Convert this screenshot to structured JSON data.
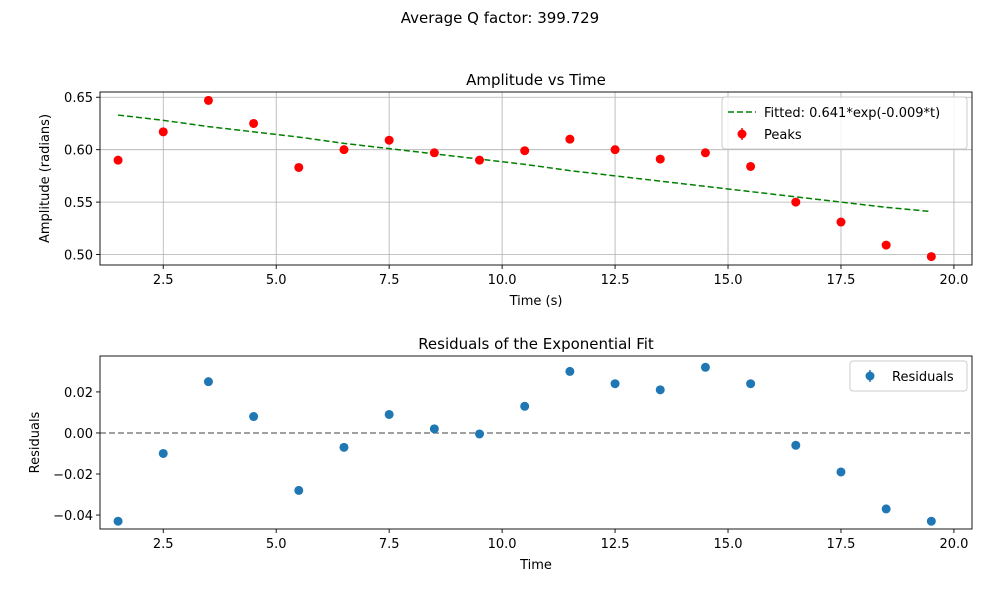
{
  "figure": {
    "suptitle": "Average Q factor: 399.729"
  },
  "chart_data": [
    {
      "type": "scatter",
      "title": "Amplitude vs Time",
      "xlabel": "Time (s)",
      "ylabel": "Amplitude (radians)",
      "xlim": [
        1.1,
        20.4
      ],
      "ylim": [
        0.49,
        0.655
      ],
      "xticks": [
        "2.5",
        "5.0",
        "7.5",
        "10.0",
        "12.5",
        "15.0",
        "17.5",
        "20.0"
      ],
      "yticks": [
        "0.50",
        "0.55",
        "0.60",
        "0.65"
      ],
      "grid": true,
      "legend_position": "top-right",
      "series": [
        {
          "name": "Fitted: 0.641*exp(-0.009*t)",
          "kind": "dashed-line",
          "color": "#008000",
          "x": [
            1.5,
            2.5,
            3.5,
            4.5,
            5.5,
            6.5,
            7.5,
            8.5,
            9.5,
            10.5,
            11.5,
            12.5,
            13.5,
            14.5,
            15.5,
            16.5,
            17.5,
            18.5,
            19.5
          ],
          "y": [
            0.633,
            0.628,
            0.622,
            0.617,
            0.612,
            0.606,
            0.601,
            0.596,
            0.591,
            0.586,
            0.58,
            0.575,
            0.57,
            0.565,
            0.56,
            0.555,
            0.55,
            0.545,
            0.541
          ]
        },
        {
          "name": "Peaks",
          "kind": "points",
          "color": "#ff0000",
          "x": [
            1.5,
            2.5,
            3.5,
            4.5,
            5.5,
            6.5,
            7.5,
            8.5,
            9.5,
            10.5,
            11.5,
            12.5,
            13.5,
            14.5,
            15.5,
            16.5,
            17.5,
            18.5,
            19.5
          ],
          "y": [
            0.59,
            0.617,
            0.647,
            0.625,
            0.583,
            0.6,
            0.609,
            0.597,
            0.59,
            0.599,
            0.61,
            0.6,
            0.591,
            0.597,
            0.584,
            0.55,
            0.531,
            0.509,
            0.498
          ]
        }
      ]
    },
    {
      "type": "scatter",
      "title": "Residuals of the Exponential Fit",
      "xlabel": "Time",
      "ylabel": "Residuals",
      "xlim": [
        1.1,
        20.4
      ],
      "ylim": [
        -0.0468,
        0.0375
      ],
      "xticks": [
        "2.5",
        "5.0",
        "7.5",
        "10.0",
        "12.5",
        "15.0",
        "17.5",
        "20.0"
      ],
      "yticks": [
        "−0.04",
        "−0.02",
        "0.00",
        "0.02"
      ],
      "grid": false,
      "legend_position": "top-right",
      "reference_line": {
        "y": 0,
        "color": "#808080",
        "style": "dashed"
      },
      "series": [
        {
          "name": "Residuals",
          "kind": "points",
          "color": "#1f77b4",
          "x": [
            1.5,
            2.5,
            3.5,
            4.5,
            5.5,
            6.5,
            7.5,
            8.5,
            9.5,
            10.5,
            11.5,
            12.5,
            13.5,
            14.5,
            15.5,
            16.5,
            17.5,
            18.5,
            19.5
          ],
          "y": [
            -0.043,
            -0.01,
            0.025,
            0.008,
            -0.028,
            -0.007,
            0.009,
            0.002,
            -0.0005,
            0.013,
            0.03,
            0.024,
            0.021,
            0.032,
            0.024,
            -0.006,
            -0.019,
            -0.037,
            -0.043
          ]
        }
      ]
    }
  ]
}
